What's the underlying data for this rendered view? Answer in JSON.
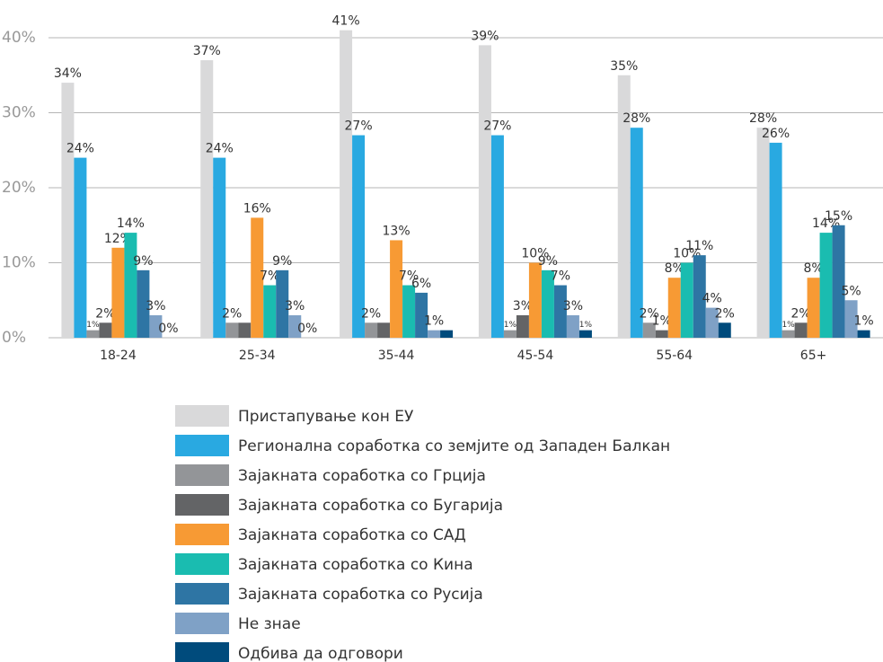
{
  "chart_data": {
    "type": "bar",
    "categories": [
      "18-24",
      "25-34",
      "35-44",
      "45-54",
      "55-64",
      "65+"
    ],
    "series": [
      {
        "name": "Пристапување кон ЕУ",
        "color": "#d9d9da",
        "values": [
          34,
          37,
          41,
          39,
          35,
          28
        ],
        "value_labels": [
          "34%",
          "37%",
          "41%",
          "39%",
          "35%",
          "28%"
        ]
      },
      {
        "name": "Регионална соработка со земјите од Западен Балкан",
        "color": "#29a9e1",
        "values": [
          24,
          24,
          27,
          27,
          28,
          26
        ],
        "value_labels": [
          "24%",
          "24%",
          "27%",
          "27%",
          "28%",
          "26%"
        ]
      },
      {
        "name": "Зајакната соработка со Грција",
        "color": "#939598",
        "values": [
          1,
          2,
          2,
          1,
          2,
          1
        ],
        "value_labels": [
          "1%",
          "2%",
          "2%",
          "1%",
          "2%",
          "1%"
        ]
      },
      {
        "name": "Зајакната соработка со Бугарија",
        "color": "#636466",
        "values": [
          2,
          2,
          2,
          3,
          1,
          2
        ],
        "value_labels": [
          "2%",
          null,
          null,
          "3%",
          "1%",
          "2%"
        ]
      },
      {
        "name": "Зајакната соработка со САД",
        "color": "#f79a34",
        "values": [
          12,
          16,
          13,
          10,
          8,
          8
        ],
        "value_labels": [
          "12%",
          "16%",
          "13%",
          "10%",
          "8%",
          "8%"
        ]
      },
      {
        "name": "Зајакната соработка со Кина",
        "color": "#1abcb0",
        "values": [
          14,
          7,
          7,
          9,
          10,
          14
        ],
        "value_labels": [
          "14%",
          "7%",
          "7%",
          "9%",
          "10%",
          "14%"
        ]
      },
      {
        "name": "Зајакната соработка со Русија",
        "color": "#2e75a4",
        "values": [
          9,
          9,
          6,
          7,
          11,
          15
        ],
        "value_labels": [
          "9%",
          "9%",
          "6%",
          "7%",
          "11%",
          "15%"
        ]
      },
      {
        "name": "Не знае",
        "color": "#7fa1c6",
        "values": [
          3,
          3,
          1,
          3,
          4,
          5
        ],
        "value_labels": [
          "3%",
          "3%",
          "1%",
          "3%",
          "4%",
          "5%"
        ]
      },
      {
        "name": "Одбива да одговори",
        "color": "#004b7c",
        "values": [
          0,
          0,
          1,
          1,
          2,
          1
        ],
        "value_labels": [
          "0%",
          "0%",
          null,
          "1%",
          "2%",
          "1%"
        ]
      }
    ],
    "ylim": [
      0,
      40
    ],
    "yticks": [
      {
        "value": 0,
        "label": "0%"
      },
      {
        "value": 10,
        "label": "10%"
      },
      {
        "value": 20,
        "label": "20%"
      },
      {
        "value": 30,
        "label": "30%"
      },
      {
        "value": 40,
        "label": "40%"
      }
    ],
    "grid": true
  }
}
